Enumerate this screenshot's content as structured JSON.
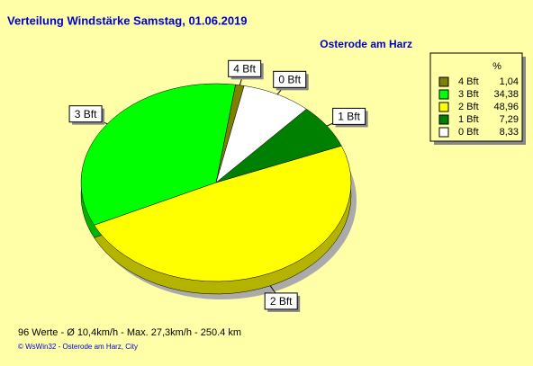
{
  "chart_data": {
    "type": "pie",
    "title": "Verteilung Windstärke  Samstag, 01.06.2019",
    "subtitle": "Osterode am Harz",
    "categories": [
      "4 Bft",
      "3 Bft",
      "2 Bft",
      "1 Bft",
      "0 Bft"
    ],
    "values": [
      1.04,
      34.38,
      48.96,
      7.29,
      8.33
    ],
    "value_labels": [
      "1,04",
      "34,38",
      "48,96",
      "7,29",
      "8,33"
    ],
    "colors": [
      "#808000",
      "#00ff00",
      "#ffff00",
      "#008000",
      "#ffffff"
    ],
    "legend_title": "%",
    "legend": "right",
    "notes": [
      "96 Werte   -   Ø 10,4km/h  -  Max. 27,3km/h   -   250.4 km",
      "© WsWin32  -  Osterode am Harz, City"
    ]
  }
}
